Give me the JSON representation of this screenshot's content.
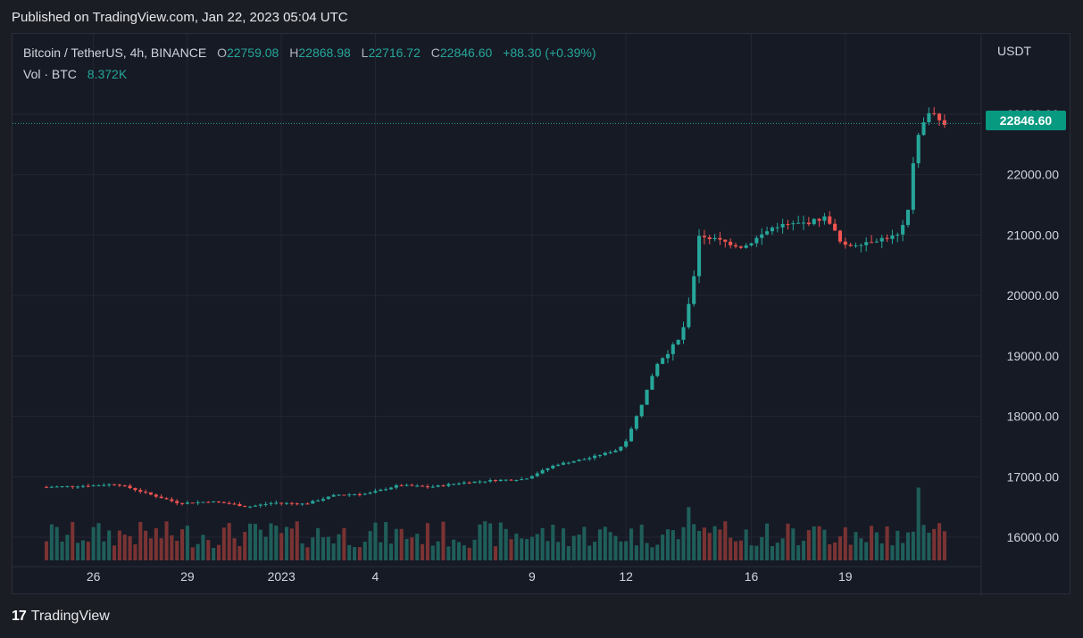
{
  "header": {
    "published": "Published on TradingView.com, Jan 22, 2023 05:04 UTC"
  },
  "legend": {
    "symbol": "Bitcoin / TetherUS, 4h, BINANCE",
    "open_label": "O",
    "open": "22759.08",
    "high_label": "H",
    "high": "22868.98",
    "low_label": "L",
    "low": "22716.72",
    "close_label": "C",
    "close": "22846.60",
    "change": "+88.30 (+0.39%)",
    "vol_label": "Vol · BTC",
    "vol_value": "8.372K"
  },
  "price_scale": {
    "currency": "USDT",
    "last_price": "22846.60"
  },
  "brand": {
    "logo": "17",
    "name": "TradingView"
  },
  "colors": {
    "up": "#26a69a",
    "down": "#ef5350",
    "vol_up": "#1f5e5a",
    "vol_down": "#7a3333",
    "last_price_bg": "#089981"
  },
  "chart_data": {
    "type": "candlestick",
    "symbol": "Bitcoin / TetherUS",
    "interval": "4h",
    "exchange": "BINANCE",
    "ylim": [
      15600,
      23800
    ],
    "y_ticks": [
      16000,
      17000,
      18000,
      19000,
      20000,
      21000,
      22000,
      23000
    ],
    "y_tick_labels": [
      "16000.00",
      "17000.00",
      "18000.00",
      "19000.00",
      "20000.00",
      "21000.00",
      "22000.00",
      "23000.00"
    ],
    "x_tick_labels": [
      "26",
      "29",
      "2023",
      "4",
      "9",
      "12",
      "16",
      "19"
    ],
    "x_tick_dates": [
      "2022-12-26",
      "2022-12-29",
      "2023-01-01",
      "2023-01-04",
      "2023-01-09",
      "2023-01-12",
      "2023-01-16",
      "2023-01-19"
    ],
    "first_bar": "2022-12-24T12:00Z",
    "last_price": 22846.6,
    "grid": true,
    "volume_unit": "BTC",
    "anchors": [
      [
        "2022-12-24T12:00Z",
        16830
      ],
      [
        "2022-12-25T18:00Z",
        16850
      ],
      [
        "2022-12-26T18:00Z",
        16880
      ],
      [
        "2022-12-27T06:00Z",
        16800
      ],
      [
        "2022-12-27T22:00Z",
        16690
      ],
      [
        "2022-12-28T18:00Z",
        16560
      ],
      [
        "2022-12-29T18:00Z",
        16590
      ],
      [
        "2022-12-30T10:00Z",
        16550
      ],
      [
        "2022-12-30T22:00Z",
        16500
      ],
      [
        "2022-12-31T18:00Z",
        16570
      ],
      [
        "2023-01-01T18:00Z",
        16550
      ],
      [
        "2023-01-02T18:00Z",
        16700
      ],
      [
        "2023-01-03T18:00Z",
        16720
      ],
      [
        "2023-01-04T18:00Z",
        16860
      ],
      [
        "2023-01-05T18:00Z",
        16830
      ],
      [
        "2023-01-06T18:00Z",
        16900
      ],
      [
        "2023-01-07T18:00Z",
        16940
      ],
      [
        "2023-01-08T18:00Z",
        16960
      ],
      [
        "2023-01-09T18:00Z",
        17200
      ],
      [
        "2023-01-10T18:00Z",
        17300
      ],
      [
        "2023-01-11T18:00Z",
        17450
      ],
      [
        "2023-01-12T00:00Z",
        17600
      ],
      [
        "2023-01-12T12:00Z",
        18200
      ],
      [
        "2023-01-12T23:00Z",
        18850
      ],
      [
        "2023-01-13T18:00Z",
        19300
      ],
      [
        "2023-01-14T02:00Z",
        20000
      ],
      [
        "2023-01-14T08:00Z",
        21000
      ],
      [
        "2023-01-15T18:00Z",
        20800
      ],
      [
        "2023-01-16T18:00Z",
        21150
      ],
      [
        "2023-01-17T18:00Z",
        21200
      ],
      [
        "2023-01-18T10:00Z",
        21300
      ],
      [
        "2023-01-18T22:00Z",
        20800
      ],
      [
        "2023-01-19T18:00Z",
        20900
      ],
      [
        "2023-01-20T18:00Z",
        21000
      ],
      [
        "2023-01-21T00:00Z",
        21400
      ],
      [
        "2023-01-21T06:00Z",
        22600
      ],
      [
        "2023-01-21T18:00Z",
        23100
      ],
      [
        "2023-01-22T02:00Z",
        22830
      ]
    ],
    "volume_range_btc": [
      0,
      60000
    ]
  }
}
